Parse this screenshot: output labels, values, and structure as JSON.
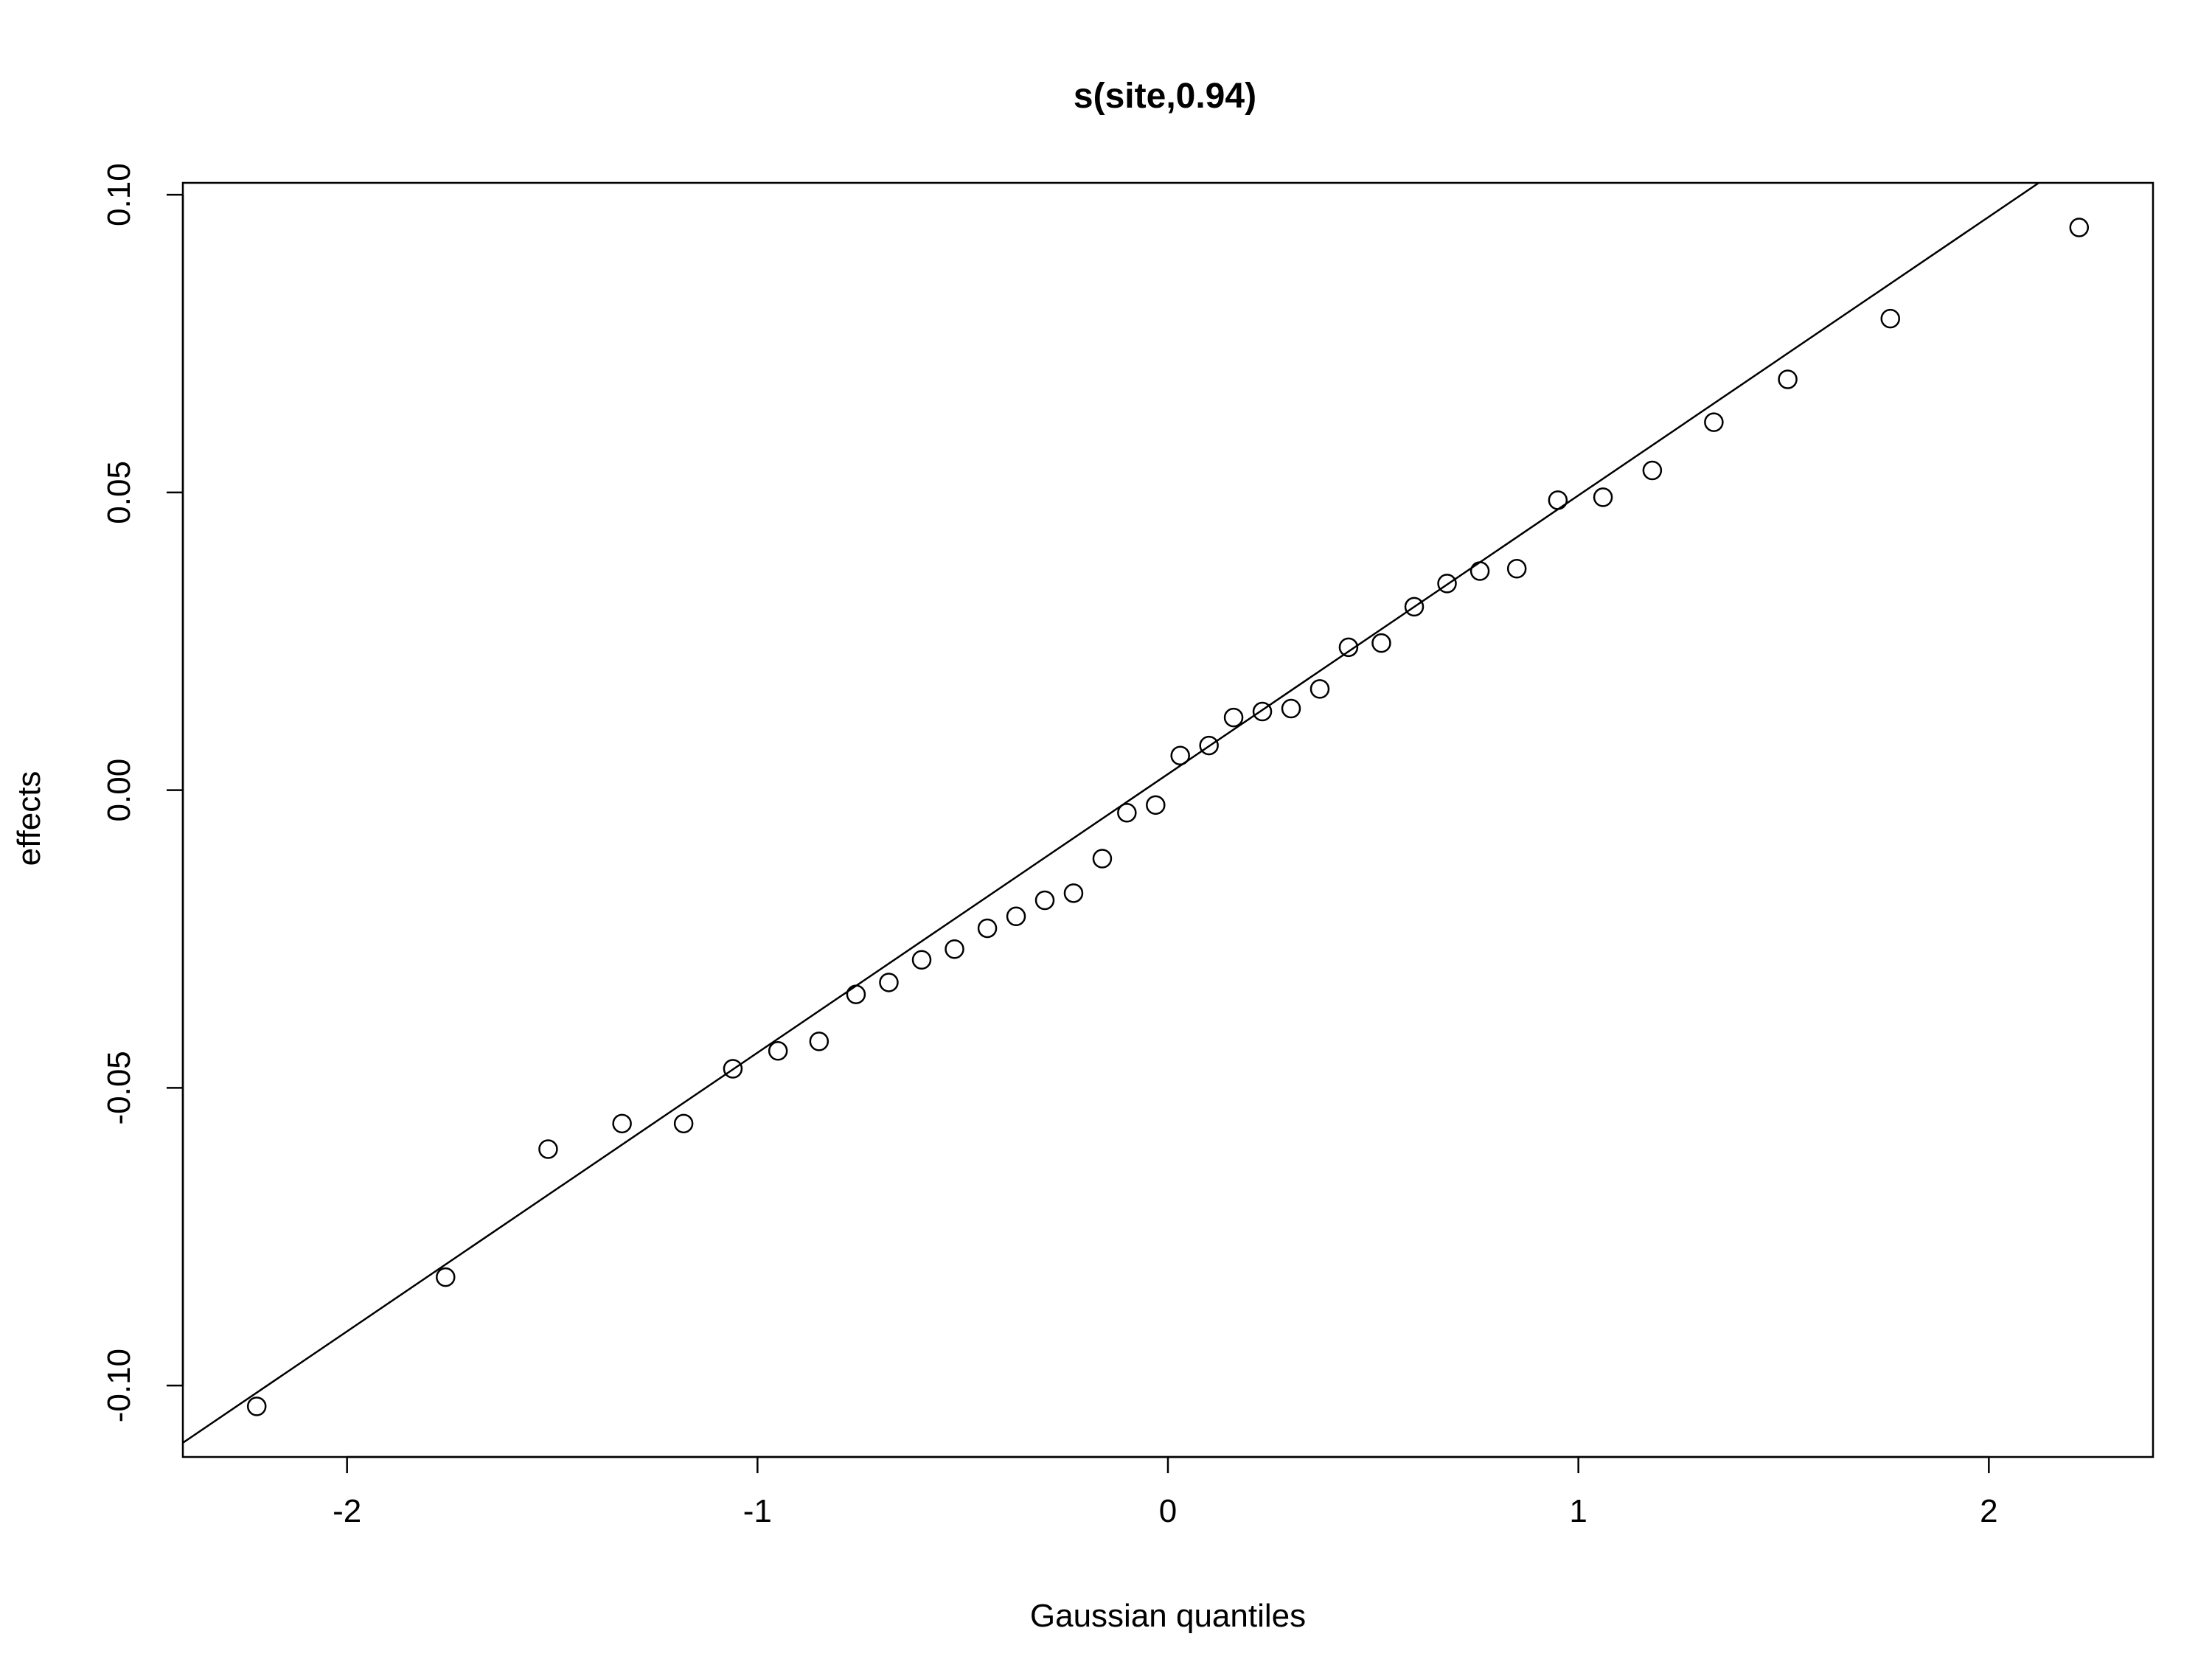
{
  "chart_data": {
    "type": "scatter",
    "title": "s(site,0.94)",
    "xlabel": "Gaussian quantiles",
    "ylabel": "effects",
    "xlim": [
      -2.4,
      2.4
    ],
    "ylim": [
      -0.112,
      0.102
    ],
    "x_ticks": [
      -2,
      -1,
      0,
      1,
      2
    ],
    "x_tick_labels": [
      "-2",
      "-1",
      "0",
      "1",
      "2"
    ],
    "y_ticks": [
      -0.1,
      -0.05,
      0.0,
      0.05,
      0.1
    ],
    "y_tick_labels": [
      "-0.10",
      "-0.05",
      "0.00",
      "0.05",
      "0.10"
    ],
    "grid": false,
    "legend": "none",
    "point_style": "open-circle",
    "colors": {
      "points": "#000000",
      "line": "#000000",
      "background": "#ffffff"
    },
    "reference_line": {
      "intercept": 0.0027,
      "slope": 0.0468
    },
    "series": [
      {
        "x": [
          -2.22,
          -1.76,
          -1.51,
          -1.33,
          -1.18,
          -1.06,
          -0.95,
          -0.85,
          -0.76,
          -0.68,
          -0.6,
          -0.52,
          -0.44,
          -0.37,
          -0.3,
          -0.23,
          -0.16,
          -0.1,
          -0.03,
          0.03,
          0.1,
          0.16,
          0.23,
          0.3,
          0.37,
          0.44,
          0.52,
          0.6,
          0.68,
          0.76,
          0.85,
          0.95,
          1.06,
          1.18,
          1.33,
          1.51,
          1.76,
          2.22
        ],
        "y": [
          -0.1035,
          -0.0818,
          -0.0603,
          -0.056,
          -0.056,
          -0.0468,
          -0.0438,
          -0.0422,
          -0.0343,
          -0.0323,
          -0.0285,
          -0.0267,
          -0.0232,
          -0.0212,
          -0.0185,
          -0.0173,
          -0.0115,
          -0.0038,
          -0.0025,
          0.0058,
          0.0075,
          0.0122,
          0.0132,
          0.0137,
          0.017,
          0.024,
          0.0247,
          0.0308,
          0.0347,
          0.0368,
          0.0372,
          0.0487,
          0.0492,
          0.0537,
          0.0618,
          0.069,
          0.0792,
          0.0945
        ]
      }
    ]
  }
}
